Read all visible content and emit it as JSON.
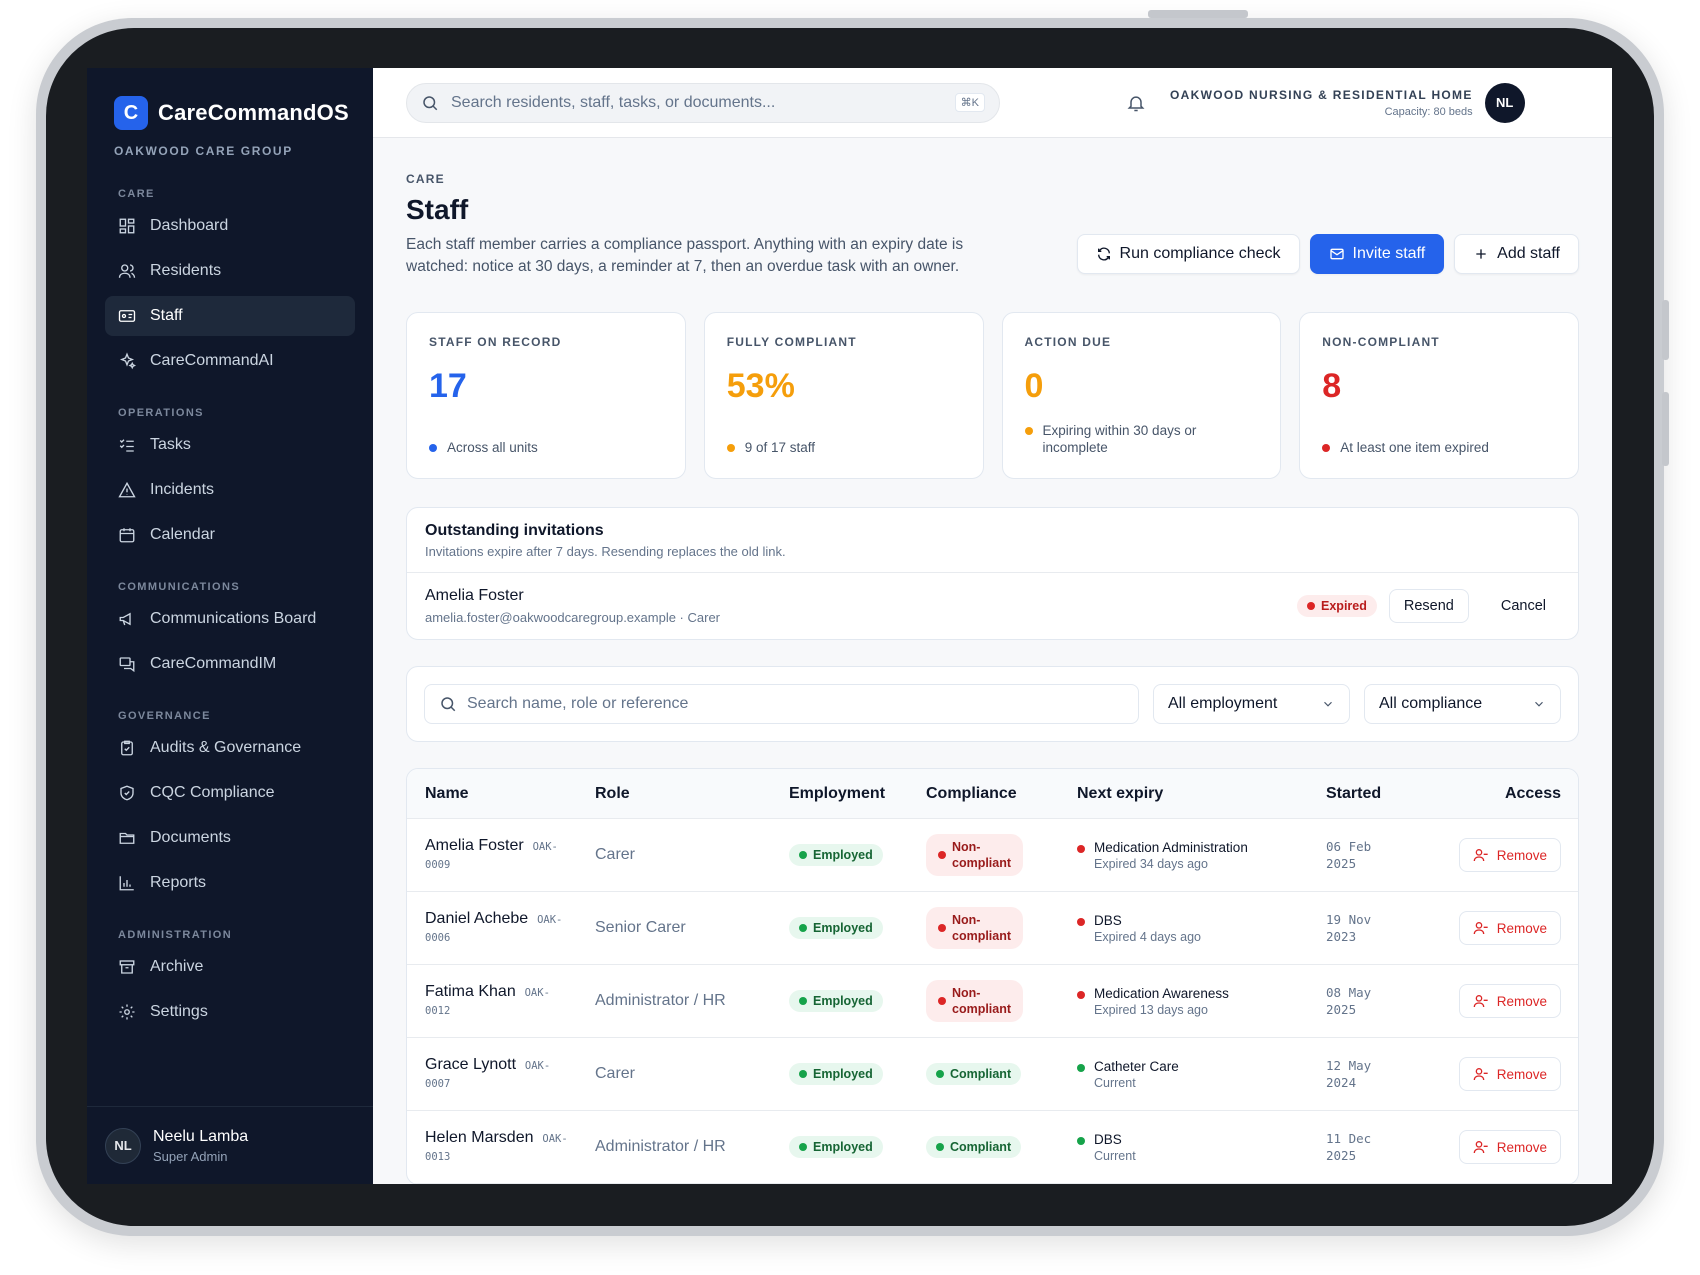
{
  "brand": {
    "logo_letter": "C",
    "name": "CareCommandOS",
    "org": "OAKWOOD CARE GROUP",
    "accent": "#2563eb"
  },
  "sidebar": {
    "sections": {
      "care": "CARE",
      "operations": "OPERATIONS",
      "communications": "COMMUNICATIONS",
      "governance": "GOVERNANCE",
      "administration": "ADMINISTRATION"
    },
    "items": {
      "dashboard": "Dashboard",
      "residents": "Residents",
      "staff": "Staff",
      "ai": "CareCommandAI",
      "tasks": "Tasks",
      "incidents": "Incidents",
      "calendar": "Calendar",
      "board": "Communications Board",
      "im": "CareCommandIM",
      "audits": "Audits & Governance",
      "cqc": "CQC Compliance",
      "documents": "Documents",
      "reports": "Reports",
      "archive": "Archive",
      "settings": "Settings"
    },
    "user": {
      "initials": "NL",
      "name": "Neelu Lamba",
      "role": "Super Admin"
    }
  },
  "topbar": {
    "search_placeholder": "Search residents, staff, tasks, or documents...",
    "shortcut": "⌘K",
    "org_name": "OAKWOOD NURSING & RESIDENTIAL HOME",
    "capacity": "Capacity: 80 beds",
    "avatar": "NL"
  },
  "page": {
    "eyebrow": "CARE",
    "title": "Staff",
    "description": "Each staff member carries a compliance passport. Anything with an expiry date is watched: notice at 30 days, a reminder at 7, then an overdue task with an owner.",
    "actions": {
      "run": "Run compliance check",
      "invite": "Invite staff",
      "add": "Add staff"
    }
  },
  "stats": [
    {
      "label": "STAFF ON RECORD",
      "value": "17",
      "note": "Across all units",
      "color": "#2563eb"
    },
    {
      "label": "FULLY COMPLIANT",
      "value": "53%",
      "note": "9 of 17 staff",
      "color": "#f59e0b"
    },
    {
      "label": "ACTION DUE",
      "value": "0",
      "note": "Expiring within 30 days or incomplete",
      "color": "#f59e0b"
    },
    {
      "label": "NON-COMPLIANT",
      "value": "8",
      "note": "At least one item expired",
      "color": "#dc2626"
    }
  ],
  "invitations": {
    "title": "Outstanding invitations",
    "subtitle": "Invitations expire after 7 days. Resending replaces the old link.",
    "items": [
      {
        "name": "Amelia Foster",
        "detail": "amelia.foster@oakwoodcaregroup.example · Carer",
        "status": "Expired",
        "resend": "Resend",
        "cancel": "Cancel"
      }
    ]
  },
  "filters": {
    "search_placeholder": "Search name, role or reference",
    "employment": "All employment",
    "compliance": "All compliance"
  },
  "table": {
    "headers": {
      "name": "Name",
      "role": "Role",
      "employment": "Employment",
      "compliance": "Compliance",
      "next": "Next expiry",
      "started": "Started",
      "access": "Access"
    },
    "rows": [
      {
        "name": "Amelia Foster",
        "ref1": "OAK-",
        "ref2": "0009",
        "role": "Carer",
        "employment": "Employed",
        "compliance": "Non-compliant",
        "comp1": "Non-",
        "comp2": "compliant",
        "next": "Medication Administration",
        "next_sub": "Expired 34 days ago",
        "start1": "06 Feb",
        "start2": "2025",
        "action": "Remove"
      },
      {
        "name": "Daniel Achebe",
        "ref1": "OAK-",
        "ref2": "0006",
        "role": "Senior Carer",
        "employment": "Employed",
        "compliance": "Non-compliant",
        "comp1": "Non-",
        "comp2": "compliant",
        "next": "DBS",
        "next_sub": "Expired 4 days ago",
        "start1": "19 Nov",
        "start2": "2023",
        "action": "Remove"
      },
      {
        "name": "Fatima Khan",
        "ref1": "OAK-",
        "ref2": "0012",
        "role": "Administrator / HR",
        "employment": "Employed",
        "compliance": "Non-compliant",
        "comp1": "Non-",
        "comp2": "compliant",
        "next": "Medication Awareness",
        "next_sub": "Expired 13 days ago",
        "start1": "08 May",
        "start2": "2025",
        "action": "Remove"
      },
      {
        "name": "Grace Lynott",
        "ref1": "OAK-",
        "ref2": "0007",
        "role": "Carer",
        "employment": "Employed",
        "compliance": "Compliant",
        "next": "Catheter Care",
        "next_sub": "Current",
        "start1": "12 May",
        "start2": "2024",
        "action": "Remove"
      },
      {
        "name": "Helen Marsden",
        "ref1": "OAK-",
        "ref2": "0013",
        "role": "Administrator / HR",
        "employment": "Employed",
        "compliance": "Compliant",
        "next": "DBS",
        "next_sub": "Current",
        "start1": "11 Dec",
        "start2": "2025",
        "action": "Remove"
      }
    ]
  },
  "colors": {
    "green": "#16a34a",
    "red": "#dc2626",
    "sidebar_bg": "#0f172a"
  }
}
